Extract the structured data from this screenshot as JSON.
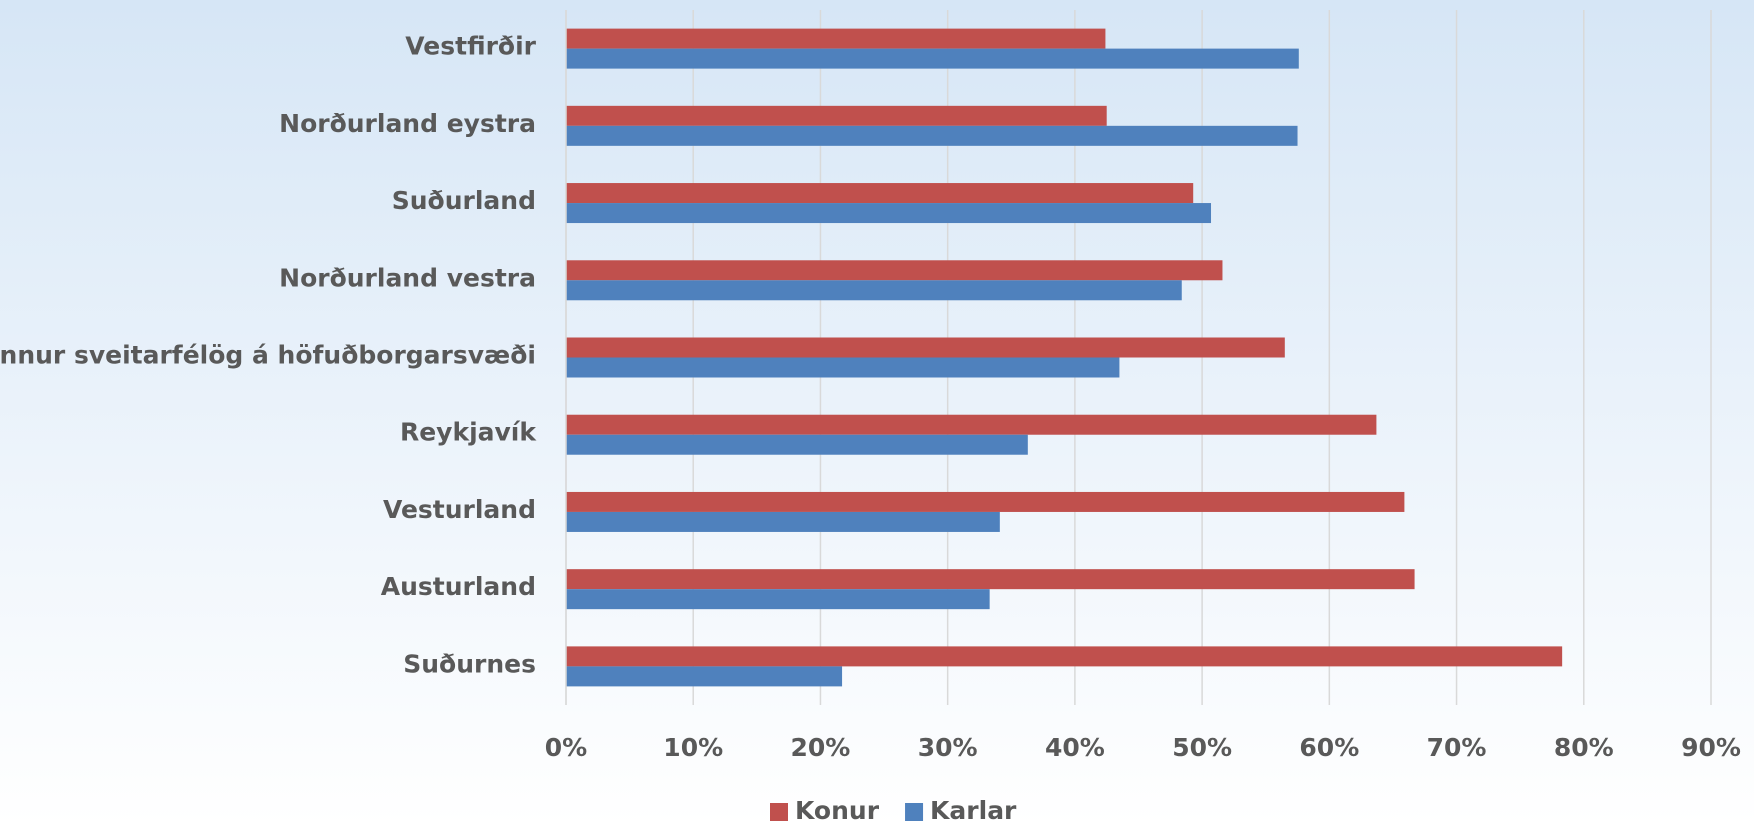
{
  "chart_data": {
    "type": "bar",
    "orientation": "horizontal",
    "categories": [
      "Vestfirðir",
      "Norðurland eystra",
      "Suðurland",
      "Norðurland vestra",
      "Önnur sveitarfélög á höfuðborgarsvæði",
      "Reykjavík",
      "Vesturland",
      "Austurland",
      "Suðurnes"
    ],
    "series": [
      {
        "name": "Konur",
        "color": "#c0504d",
        "values": [
          42.4,
          42.5,
          49.3,
          51.6,
          56.5,
          63.7,
          65.9,
          66.7,
          78.3
        ]
      },
      {
        "name": "Karlar",
        "color": "#4f81bd",
        "values": [
          57.6,
          57.5,
          50.7,
          48.4,
          43.5,
          36.3,
          34.1,
          33.3,
          21.7
        ]
      }
    ],
    "xlim": [
      0,
      90
    ],
    "xticks": [
      {
        "value": 0,
        "label": "0%"
      },
      {
        "value": 10,
        "label": "10%"
      },
      {
        "value": 20,
        "label": "20%"
      },
      {
        "value": 30,
        "label": "30%"
      },
      {
        "value": 40,
        "label": "40%"
      },
      {
        "value": 50,
        "label": "50%"
      },
      {
        "value": 60,
        "label": "60%"
      },
      {
        "value": 70,
        "label": "70%"
      },
      {
        "value": 80,
        "label": "80%"
      },
      {
        "value": 90,
        "label": "90%"
      }
    ],
    "grid": true,
    "legend": "bottom"
  }
}
